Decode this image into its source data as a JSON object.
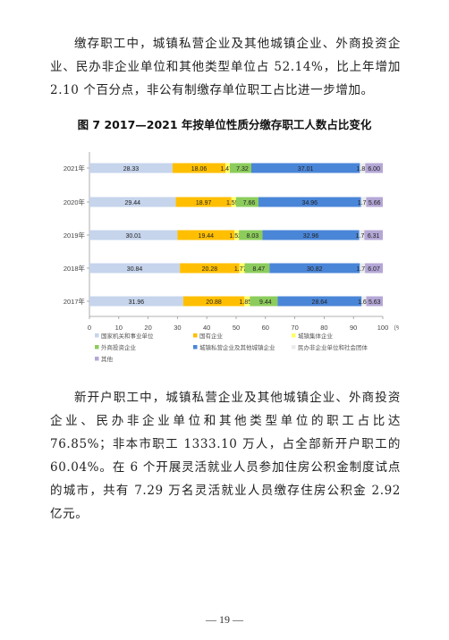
{
  "paragraph1": "缴存职工中，城镇私营企业及其他城镇企业、外商投资企业、民办非企业单位和其他类型单位占 52.14%，比上年增加 2.10 个百分点，非公有制缴存单位职工占比进一步增加。",
  "figure_title": "图 7  2017—2021 年按单位性质分缴存职工人数占比变化",
  "chart_data": {
    "type": "bar",
    "orientation": "horizontal",
    "stacked": true,
    "categories": [
      "2021年",
      "2020年",
      "2019年",
      "2018年",
      "2017年"
    ],
    "series": [
      {
        "name": "国家机关和事业单位",
        "color": "#c6d4ec",
        "values": [
          28.33,
          29.44,
          30.01,
          30.84,
          31.96
        ]
      },
      {
        "name": "国有企业",
        "color": "#ffbf00",
        "values": [
          18.06,
          18.97,
          19.44,
          20.28,
          20.88
        ]
      },
      {
        "name": "城镇集体企业",
        "color": "#ffff66",
        "values": [
          1.47,
          1.55,
          1.52,
          1.77,
          1.85
        ]
      },
      {
        "name": "外商投资企业",
        "color": "#8ccc5c",
        "values": [
          7.32,
          7.66,
          8.03,
          8.47,
          9.44
        ]
      },
      {
        "name": "城镇私营企业及其他城镇企业",
        "color": "#4a86d8",
        "values": [
          37.01,
          34.96,
          32.96,
          30.82,
          28.64
        ]
      },
      {
        "name": "民办非企业单位和社会团体",
        "color": "#ebebeb",
        "values": [
          1.81,
          1.76,
          1.73,
          1.75,
          1.6
        ]
      },
      {
        "name": "其他",
        "color": "#b4a7d6",
        "values": [
          6.0,
          5.66,
          6.31,
          6.07,
          5.63
        ]
      }
    ],
    "xlim": [
      0,
      100
    ],
    "xticks": [
      "0",
      "10",
      "20",
      "30",
      "40",
      "50",
      "60",
      "70",
      "80",
      "90",
      "100"
    ],
    "x_unit": "（%）",
    "legend_position": "bottom",
    "grid": false
  },
  "paragraph2": "新开户职工中，城镇私营企业及其他城镇企业、外商投资企业、民办非企业单位和其他类型单位的职工占比达 76.85%；非本市职工 1333.10 万人，占全部新开户职工的 60.04%。在 6 个开展灵活就业人员参加住房公积金制度试点的城市，共有 7.29 万名灵活就业人员缴存住房公积金 2.92 亿元。",
  "page_number": "— 19 —"
}
